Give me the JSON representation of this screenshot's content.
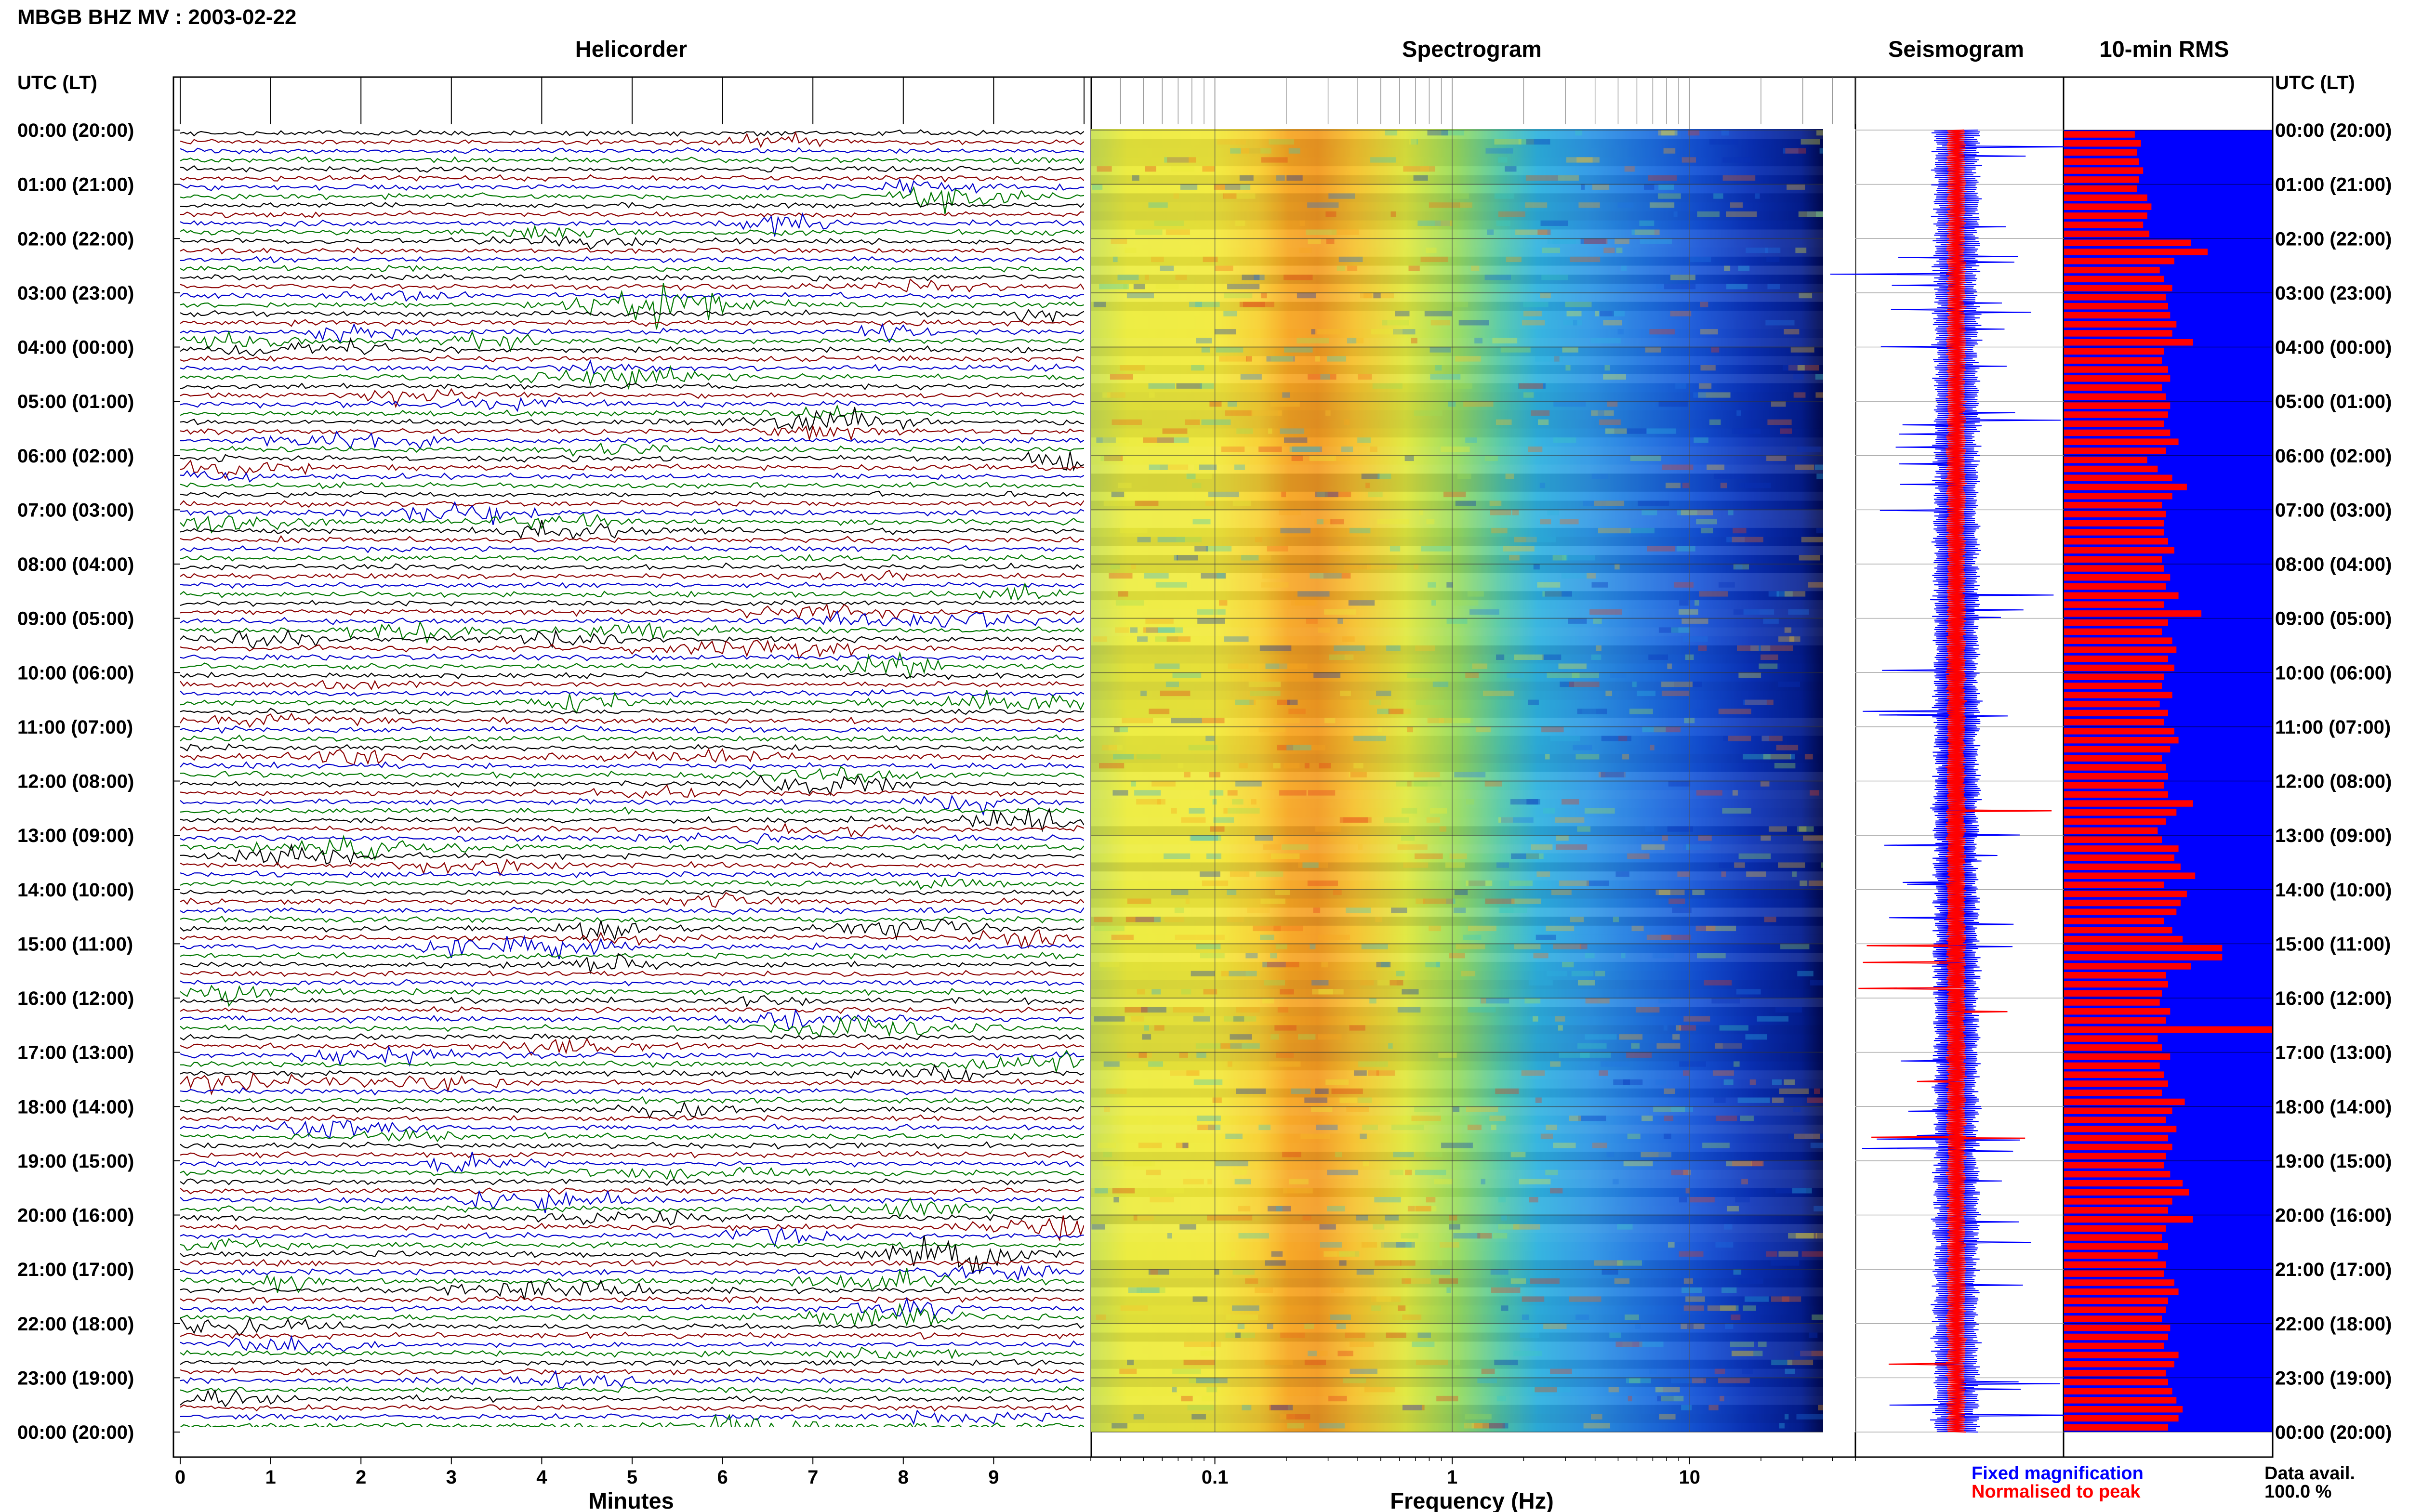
{
  "header": {
    "title": "MBGB BHZ MV : 2003-02-22"
  },
  "chart_data": {
    "type": "helicorder",
    "station": "MBGB",
    "channel": "BHZ",
    "network": "MV",
    "date": "2003-02-22",
    "panels": {
      "helicorder": {
        "title": "Helicorder",
        "xlabel": "Minutes",
        "x_ticks": [
          "0",
          "1",
          "2",
          "3",
          "4",
          "5",
          "6",
          "7",
          "8",
          "9"
        ],
        "xlim": [
          0,
          10
        ],
        "trace_colors": [
          "#000000",
          "#8b0000",
          "#0000cc",
          "#007700"
        ]
      },
      "spectrogram": {
        "title": "Spectrogram",
        "xlabel": "Frequency (Hz)",
        "x_scale": "log",
        "x_ticks": [
          "0.1",
          "1",
          "10"
        ],
        "xlim": [
          0.03,
          50
        ],
        "dominant_band_hz": [
          0.2,
          0.5
        ]
      },
      "seismogram": {
        "title": "Seismogram",
        "legend": [
          {
            "label": "Fixed magnification",
            "color": "#0000ff"
          },
          {
            "label": "Normalised to peak",
            "color": "#ff0000"
          }
        ]
      },
      "rms": {
        "title": "10-min RMS",
        "bar_color": "#ff0000",
        "background_color": "#0000ff",
        "relative_values": [
          0.34,
          0.37,
          0.35,
          0.36,
          0.38,
          0.36,
          0.35,
          0.4,
          0.42,
          0.4,
          0.38,
          0.41,
          0.61,
          0.69,
          0.53,
          0.46,
          0.48,
          0.52,
          0.49,
          0.5,
          0.51,
          0.54,
          0.52,
          0.62,
          0.48,
          0.47,
          0.5,
          0.51,
          0.47,
          0.49,
          0.51,
          0.5,
          0.48,
          0.51,
          0.55,
          0.49,
          0.4,
          0.45,
          0.52,
          0.59,
          0.52,
          0.47,
          0.49,
          0.48,
          0.48,
          0.5,
          0.53,
          0.47,
          0.48,
          0.51,
          0.49,
          0.55,
          0.48,
          0.66,
          0.5,
          0.47,
          0.52,
          0.54,
          0.5,
          0.53,
          0.48,
          0.47,
          0.52,
          0.46,
          0.5,
          0.48,
          0.53,
          0.55,
          0.51,
          0.47,
          0.49,
          0.5,
          0.48,
          0.5,
          0.62,
          0.54,
          0.49,
          0.45,
          0.47,
          0.55,
          0.53,
          0.56,
          0.63,
          0.48,
          0.59,
          0.56,
          0.54,
          0.48,
          0.52,
          0.57,
          0.76,
          0.76,
          0.61,
          0.49,
          0.5,
          0.47,
          0.46,
          0.51,
          0.49,
          1.0,
          0.45,
          0.47,
          0.51,
          0.46,
          0.48,
          0.5,
          0.47,
          0.58,
          0.52,
          0.49,
          0.54,
          0.5,
          0.52,
          0.49,
          0.48,
          0.51,
          0.57,
          0.6,
          0.52,
          0.5,
          0.62,
          0.49,
          0.47,
          0.5,
          0.45,
          0.49,
          0.48,
          0.53,
          0.55,
          0.5,
          0.49,
          0.47,
          0.51,
          0.5,
          0.48,
          0.55,
          0.53,
          0.49,
          0.5,
          0.52,
          0.54,
          0.57,
          0.55,
          0.5
        ]
      }
    },
    "y_axis": {
      "label_left": "UTC (LT)",
      "label_right": "UTC (LT)",
      "times": [
        "00:00 (20:00)",
        "01:00 (21:00)",
        "02:00 (22:00)",
        "03:00 (23:00)",
        "04:00 (00:00)",
        "05:00 (01:00)",
        "06:00 (02:00)",
        "07:00 (03:00)",
        "08:00 (04:00)",
        "09:00 (05:00)",
        "10:00 (06:00)",
        "11:00 (07:00)",
        "12:00 (08:00)",
        "13:00 (09:00)",
        "14:00 (10:00)",
        "15:00 (11:00)",
        "16:00 (12:00)",
        "17:00 (13:00)",
        "18:00 (14:00)",
        "19:00 (15:00)",
        "20:00 (16:00)",
        "21:00 (17:00)",
        "22:00 (18:00)",
        "23:00 (19:00)",
        "00:00 (20:00)"
      ]
    },
    "data_availability": {
      "label": "Data avail.",
      "value": "100.0 %"
    }
  }
}
